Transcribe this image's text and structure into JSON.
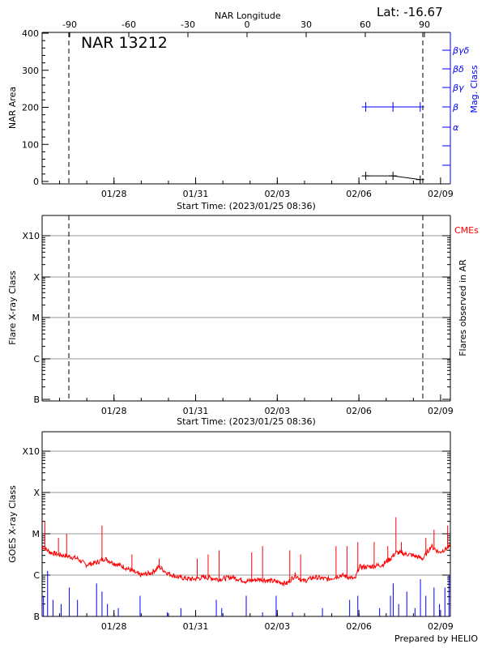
{
  "chart_data": [
    {
      "type": "line",
      "panel": "nar",
      "title": "NAR 13212",
      "latitude_label": "Lat: -16.67",
      "top_axis_label": "NAR Longitude",
      "top_ticks": [
        "-90",
        "-60",
        "-30",
        "0",
        "30",
        "60",
        "90"
      ],
      "top_tick_values": [
        -90,
        -60,
        -30,
        0,
        30,
        60,
        90
      ],
      "ylabel": "NAR Area",
      "ylim": [
        0,
        400
      ],
      "yticks": [
        "0",
        "100",
        "200",
        "300",
        "400"
      ],
      "y2label": "Mag. Class",
      "y2ticks": [
        "α",
        "β",
        "βγ",
        "βδ",
        "βγδ"
      ],
      "xlabel": "Start Time: (2023/01/25 08:36)",
      "xticks": [
        "01/28",
        "01/31",
        "02/03",
        "02/06",
        "02/09"
      ],
      "limb_lines_longitude": [
        -90,
        90
      ],
      "area_series": {
        "x": [
          "2023-02-06 06:00",
          "2023-02-07 06:00",
          "2023-02-08 06:00"
        ],
        "values": [
          15,
          15,
          5
        ],
        "color": "#000000"
      },
      "mag_class_series": {
        "x": [
          "2023-02-06 06:00",
          "2023-02-07 06:00",
          "2023-02-08 06:00"
        ],
        "values": [
          "β",
          "β",
          "β"
        ],
        "color": "#0000ff"
      }
    },
    {
      "type": "scatter",
      "panel": "flares",
      "ylabel": "Flare X-ray Class",
      "y2label": "Flares observed in AR",
      "cme_label": "CMEs",
      "yticks": [
        "B",
        "C",
        "M",
        "X",
        "X10"
      ],
      "xlabel": "Start Time: (2023/01/25 08:36)",
      "xticks": [
        "01/28",
        "01/31",
        "02/03",
        "02/06",
        "02/09"
      ],
      "grid": true,
      "points": []
    },
    {
      "type": "line",
      "panel": "goes",
      "ylabel": "GOES X-ray Class",
      "yticks": [
        "B",
        "C",
        "M",
        "X",
        "X10"
      ],
      "xticks": [
        "01/28",
        "01/31",
        "02/03",
        "02/06",
        "02/09"
      ],
      "x_unit": "days since 2023/01/25 08:36",
      "y_unit": "log10 flux (W/m^2)",
      "grid": true,
      "credit": "Prepared by HELIO",
      "long_channel": {
        "color": "#ff0000",
        "baseline": [
          [
            0,
            -5.3
          ],
          [
            0.3,
            -5.45
          ],
          [
            0.6,
            -5.5
          ],
          [
            1.0,
            -5.55
          ],
          [
            1.3,
            -5.6
          ],
          [
            1.6,
            -5.75
          ],
          [
            2.0,
            -5.7
          ],
          [
            2.3,
            -5.6
          ],
          [
            2.6,
            -5.7
          ],
          [
            3.0,
            -5.8
          ],
          [
            3.3,
            -5.9
          ],
          [
            3.6,
            -6.0
          ],
          [
            4.0,
            -5.95
          ],
          [
            4.3,
            -5.8
          ],
          [
            4.6,
            -5.95
          ],
          [
            5.0,
            -6.05
          ],
          [
            5.5,
            -6.1
          ],
          [
            6.0,
            -6.05
          ],
          [
            6.5,
            -6.1
          ],
          [
            7.0,
            -6.05
          ],
          [
            7.5,
            -6.15
          ],
          [
            8.0,
            -6.1
          ],
          [
            8.5,
            -6.15
          ],
          [
            9.0,
            -6.2
          ],
          [
            9.3,
            -6.0
          ],
          [
            9.6,
            -6.15
          ],
          [
            10.0,
            -6.05
          ],
          [
            10.5,
            -6.1
          ],
          [
            11.0,
            -6.0
          ],
          [
            11.5,
            -6.1
          ],
          [
            11.65,
            -5.8
          ],
          [
            12.0,
            -5.8
          ],
          [
            12.5,
            -5.75
          ],
          [
            12.8,
            -5.6
          ],
          [
            13.0,
            -5.45
          ],
          [
            13.5,
            -5.5
          ],
          [
            14.0,
            -5.6
          ],
          [
            14.3,
            -5.3
          ],
          [
            14.6,
            -5.45
          ],
          [
            15.0,
            -5.3
          ]
        ],
        "spikes": [
          [
            0.1,
            -4.7
          ],
          [
            0.6,
            -5.1
          ],
          [
            0.9,
            -5.0
          ],
          [
            2.2,
            -4.8
          ],
          [
            3.3,
            -5.5
          ],
          [
            4.3,
            -5.6
          ],
          [
            5.7,
            -5.6
          ],
          [
            6.1,
            -5.5
          ],
          [
            6.5,
            -5.4
          ],
          [
            7.7,
            -5.45
          ],
          [
            8.1,
            -5.3
          ],
          [
            9.1,
            -5.4
          ],
          [
            9.5,
            -5.5
          ],
          [
            10.8,
            -5.3
          ],
          [
            11.2,
            -5.3
          ],
          [
            11.6,
            -5.2
          ],
          [
            12.2,
            -5.2
          ],
          [
            12.7,
            -5.3
          ],
          [
            13.0,
            -4.6
          ],
          [
            13.2,
            -5.2
          ],
          [
            14.1,
            -5.1
          ],
          [
            14.4,
            -4.9
          ],
          [
            14.9,
            -4.8
          ]
        ]
      },
      "short_channel": {
        "color": "#0000ff",
        "spikes": [
          [
            0.05,
            -6.5
          ],
          [
            0.2,
            -5.9
          ],
          [
            0.4,
            -6.6
          ],
          [
            0.7,
            -6.7
          ],
          [
            1.0,
            -6.3
          ],
          [
            1.3,
            -6.6
          ],
          [
            2.0,
            -6.2
          ],
          [
            2.2,
            -6.4
          ],
          [
            2.4,
            -6.7
          ],
          [
            2.8,
            -6.8
          ],
          [
            3.6,
            -6.5
          ],
          [
            4.6,
            -6.9
          ],
          [
            5.1,
            -6.8
          ],
          [
            6.0,
            -7.0
          ],
          [
            6.4,
            -6.6
          ],
          [
            6.6,
            -6.8
          ],
          [
            7.5,
            -6.5
          ],
          [
            8.1,
            -6.9
          ],
          [
            8.6,
            -6.5
          ],
          [
            9.2,
            -6.9
          ],
          [
            10.3,
            -6.8
          ],
          [
            11.3,
            -6.6
          ],
          [
            11.6,
            -6.5
          ],
          [
            12.4,
            -6.8
          ],
          [
            12.8,
            -6.5
          ],
          [
            12.9,
            -6.2
          ],
          [
            13.1,
            -6.7
          ],
          [
            13.4,
            -6.4
          ],
          [
            13.7,
            -6.8
          ],
          [
            13.9,
            -6.1
          ],
          [
            14.1,
            -6.5
          ],
          [
            14.4,
            -6.3
          ],
          [
            14.6,
            -6.7
          ],
          [
            14.8,
            -6.3
          ],
          [
            14.95,
            -6.0
          ]
        ]
      }
    }
  ]
}
